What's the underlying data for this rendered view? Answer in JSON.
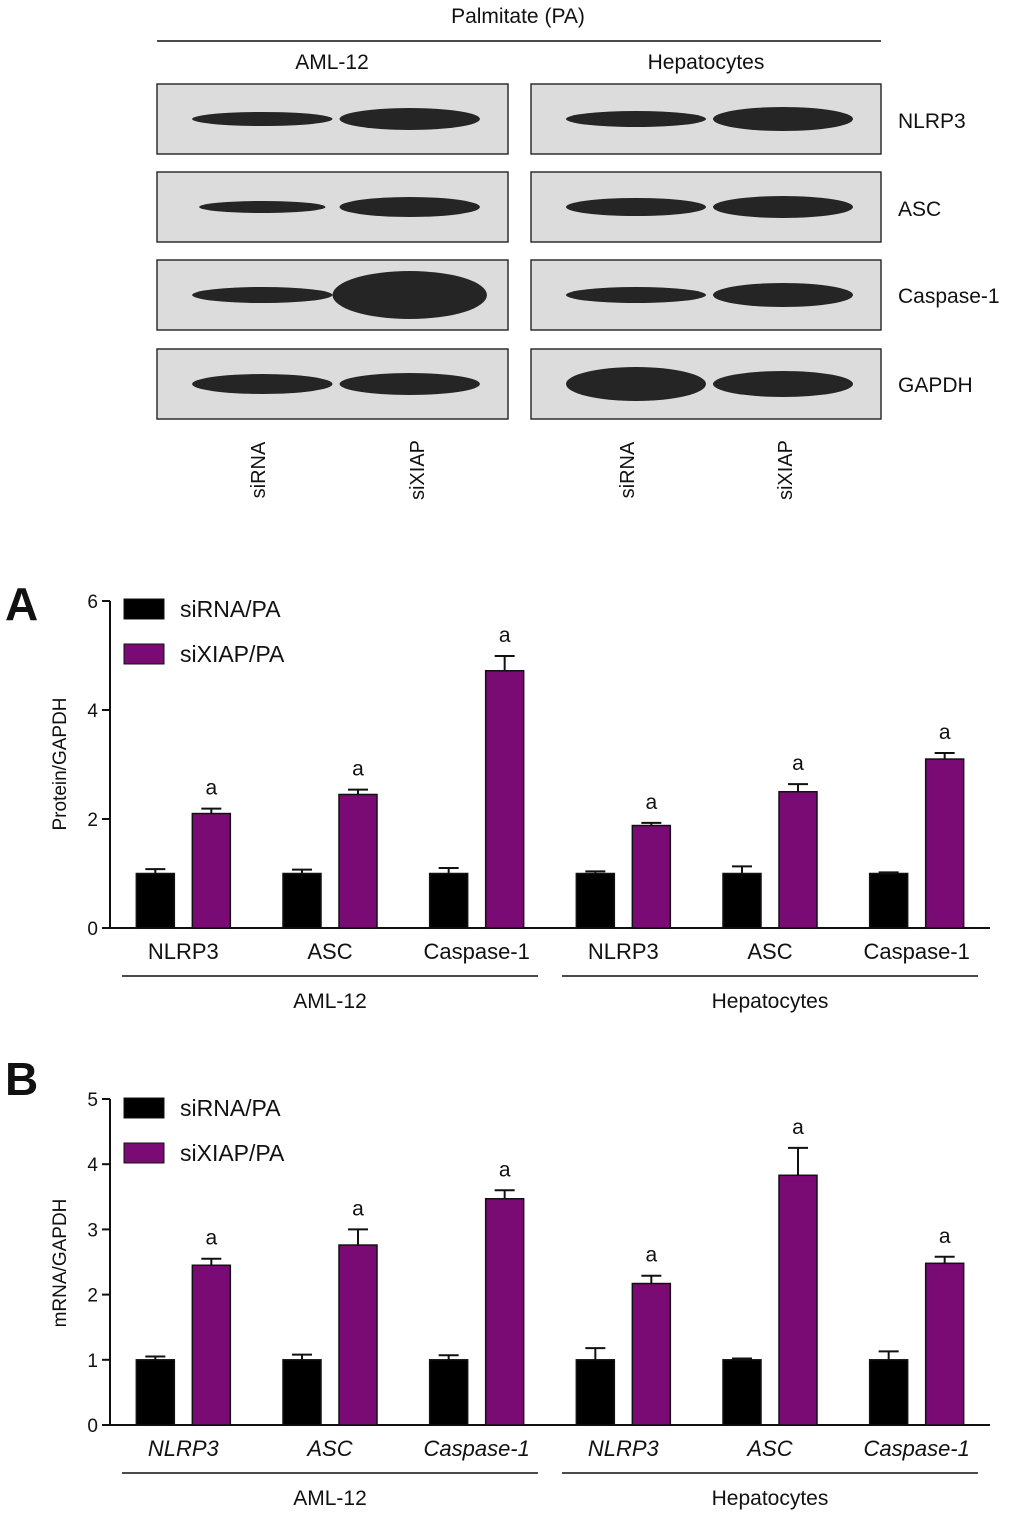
{
  "blot": {
    "treatment_label": "Palmitate (PA)",
    "groups": [
      "AML-12",
      "Hepatocytes"
    ],
    "proteins": [
      "NLRP3",
      "ASC",
      "Caspase-1",
      "GAPDH"
    ],
    "lanes": [
      "siRNA",
      "siXIAP",
      "siRNA",
      "siXIAP"
    ]
  },
  "colors": {
    "sirna": "#000000",
    "sixiap": "#7a0a74",
    "blot_bg": "#dcdcdc",
    "band": "#151515"
  },
  "chart_data": [
    {
      "type": "bar",
      "panel": "A",
      "ylabel": "Protein/GAPDH",
      "ylim": [
        0,
        6
      ],
      "yticks": [
        "0",
        "2",
        "4",
        "6"
      ],
      "italic_categories": false,
      "categories": [
        "NLRP3",
        "ASC",
        "Caspase-1",
        "NLRP3",
        "ASC",
        "Caspase-1"
      ],
      "groups": [
        {
          "label": "AML-12",
          "categories": [
            0,
            1,
            2
          ]
        },
        {
          "label": "Hepatocytes",
          "categories": [
            3,
            4,
            5
          ]
        }
      ],
      "series": [
        {
          "name": "siRNA/PA",
          "color": "#000000",
          "values": [
            1.0,
            1.0,
            1.0,
            1.0,
            1.0,
            1.0
          ],
          "errors": [
            0.08,
            0.07,
            0.1,
            0.04,
            0.13,
            0.02
          ]
        },
        {
          "name": "siXIAP/PA",
          "color": "#7a0a74",
          "values": [
            2.1,
            2.45,
            4.72,
            1.88,
            2.5,
            3.1
          ],
          "errors": [
            0.09,
            0.09,
            0.27,
            0.05,
            0.14,
            0.11
          ]
        }
      ],
      "annotations": [
        {
          "category": 0,
          "series": 1,
          "text": "a"
        },
        {
          "category": 1,
          "series": 1,
          "text": "a"
        },
        {
          "category": 2,
          "series": 1,
          "text": "a"
        },
        {
          "category": 3,
          "series": 1,
          "text": "a"
        },
        {
          "category": 4,
          "series": 1,
          "text": "a"
        },
        {
          "category": 5,
          "series": 1,
          "text": "a"
        }
      ],
      "legend": "top-left"
    },
    {
      "type": "bar",
      "panel": "B",
      "ylabel": "mRNA/GAPDH",
      "ylim": [
        0,
        5
      ],
      "yticks": [
        "0",
        "1",
        "2",
        "3",
        "4",
        "5"
      ],
      "italic_categories": true,
      "categories": [
        "NLRP3",
        "ASC",
        "Caspase-1",
        "NLRP3",
        "ASC",
        "Caspase-1"
      ],
      "groups": [
        {
          "label": "AML-12",
          "categories": [
            0,
            1,
            2
          ]
        },
        {
          "label": "Hepatocytes",
          "categories": [
            3,
            4,
            5
          ]
        }
      ],
      "series": [
        {
          "name": "siRNA/PA",
          "color": "#000000",
          "values": [
            1.0,
            1.0,
            1.0,
            1.0,
            1.0,
            1.0
          ],
          "errors": [
            0.05,
            0.08,
            0.07,
            0.18,
            0.02,
            0.13
          ]
        },
        {
          "name": "siXIAP/PA",
          "color": "#7a0a74",
          "values": [
            2.45,
            2.76,
            3.47,
            2.17,
            3.83,
            2.48
          ],
          "errors": [
            0.1,
            0.24,
            0.13,
            0.12,
            0.42,
            0.1
          ]
        }
      ],
      "annotations": [
        {
          "category": 0,
          "series": 1,
          "text": "a"
        },
        {
          "category": 1,
          "series": 1,
          "text": "a"
        },
        {
          "category": 2,
          "series": 1,
          "text": "a"
        },
        {
          "category": 3,
          "series": 1,
          "text": "a"
        },
        {
          "category": 4,
          "series": 1,
          "text": "a"
        },
        {
          "category": 5,
          "series": 1,
          "text": "a"
        }
      ],
      "legend": "top-left"
    }
  ]
}
